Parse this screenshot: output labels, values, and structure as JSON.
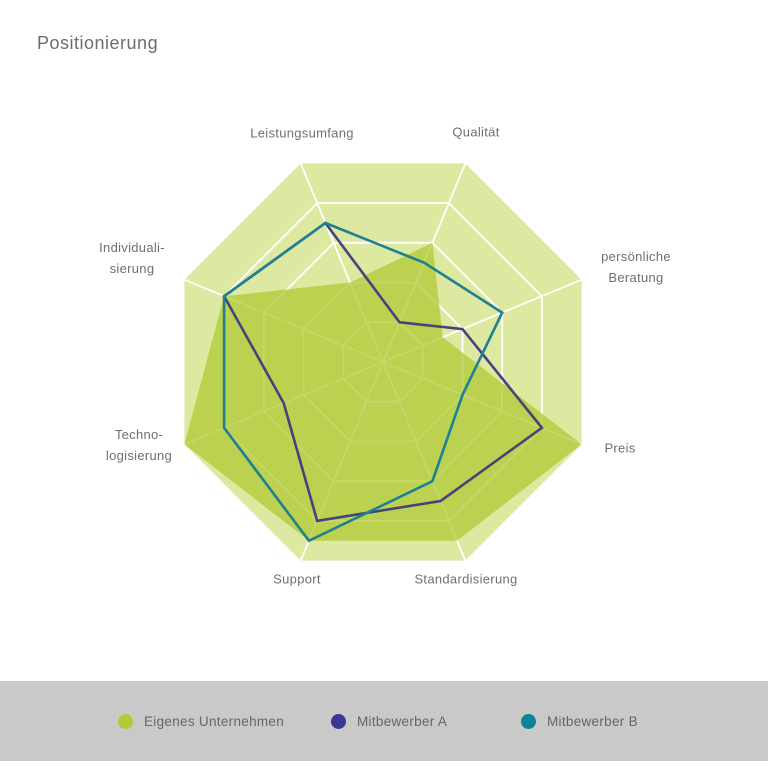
{
  "title": "Positionierung",
  "chart_data": {
    "type": "radar",
    "categories": [
      "Leistungsumfang",
      "Qualität",
      "persönliche Beratung",
      "Preis",
      "Standardisierung",
      "Support",
      "Technologisierung",
      "Individualisierung"
    ],
    "labels_display": [
      "Leistungsumfang",
      "Qualität",
      "persönliche\nBeratung",
      "Preis",
      "Standardisierung",
      "Support",
      "Techno-\nlogisierung",
      "Individuali-\nsierung"
    ],
    "series": [
      {
        "name": "Eigenes Unternehmen",
        "style": "area",
        "color": "#adc72f",
        "fill_opacity": 0.72,
        "values": [
          2,
          3,
          1.5,
          5,
          4.5,
          4.5,
          5,
          4
        ]
      },
      {
        "name": "Mitbewerber A",
        "style": "line",
        "color": "#45437d",
        "values": [
          3.5,
          1,
          2,
          4,
          3.5,
          4,
          2.5,
          4
        ]
      },
      {
        "name": "Mitbewerber B",
        "style": "line",
        "color": "#1e8093",
        "values": [
          3.5,
          2.5,
          3,
          2,
          3,
          4.5,
          4,
          4
        ]
      }
    ],
    "scale": {
      "min": 0,
      "max": 5,
      "rings": [
        1,
        2,
        3,
        4,
        5
      ]
    },
    "grid": "on",
    "grid_color": "#ffffff",
    "base_color": "#dde8a1",
    "axis_label_color": "#6f6f6f",
    "legend_position": "bottom"
  },
  "legend": {
    "items": [
      {
        "label": "Eigenes Unternehmen",
        "color": "#b2cb35"
      },
      {
        "label": "Mitbewerber A",
        "color": "#3b3794"
      },
      {
        "label": "Mitbewerber B",
        "color": "#0c8399"
      }
    ]
  }
}
